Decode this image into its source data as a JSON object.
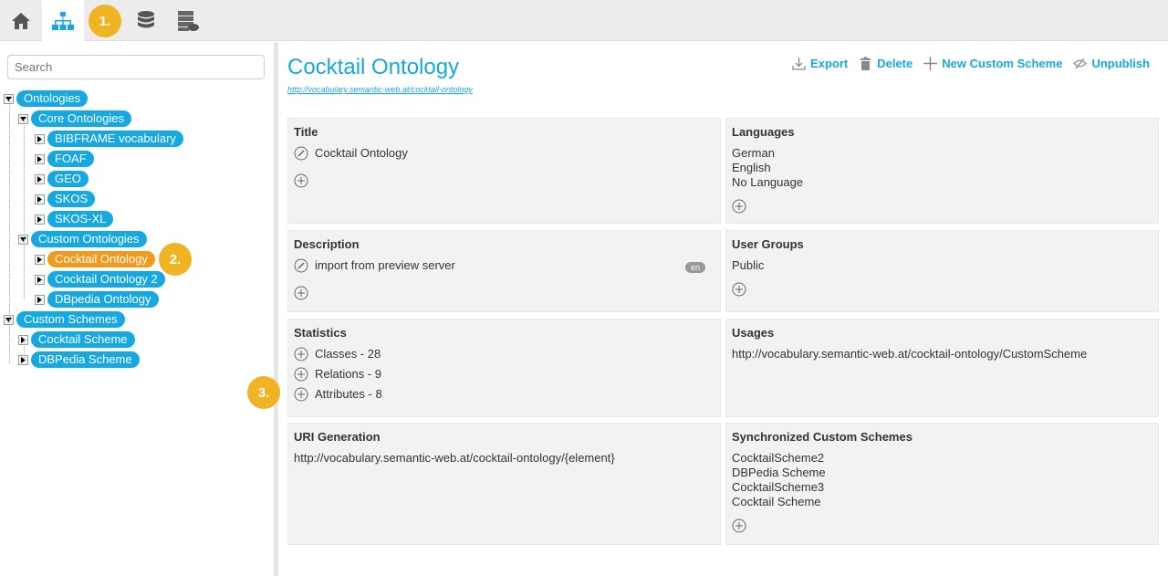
{
  "topbar": {
    "items": [
      {
        "icon": "home-icon"
      },
      {
        "icon": "hierarchy-icon",
        "active": true
      },
      {
        "icon": "database-icon"
      },
      {
        "icon": "server-cloud-icon"
      }
    ],
    "badge1": "1."
  },
  "sidebar": {
    "search_placeholder": "Search",
    "badge2": "2.",
    "tree": [
      {
        "label": "Ontologies",
        "level": 0,
        "open": true
      },
      {
        "label": "Core Ontologies",
        "level": 1,
        "open": true
      },
      {
        "label": "BIBFRAME vocabulary",
        "level": 2
      },
      {
        "label": "FOAF",
        "level": 2
      },
      {
        "label": "GEO",
        "level": 2
      },
      {
        "label": "SKOS",
        "level": 2
      },
      {
        "label": "SKOS-XL",
        "level": 2
      },
      {
        "label": "Custom Ontologies",
        "level": 1,
        "open": true
      },
      {
        "label": "Cocktail Ontology",
        "level": 2,
        "selected": true
      },
      {
        "label": "Cocktail Ontology 2",
        "level": 2
      },
      {
        "label": "DBpedia Ontology",
        "level": 2
      },
      {
        "label": "Custom Schemes",
        "level": 0,
        "open": true
      },
      {
        "label": "Cocktail Scheme",
        "level": 1
      },
      {
        "label": "DBPedia Scheme",
        "level": 1
      }
    ]
  },
  "main": {
    "title": "Cocktail Ontology",
    "uri": "http://vocabulary.semantic-web.at/cocktail-ontology",
    "actions": {
      "export": "Export",
      "delete": "Delete",
      "new_scheme": "New Custom Scheme",
      "unpublish": "Unpublish"
    },
    "badge3": "3.",
    "title_card": {
      "heading": "Title",
      "value": "Cocktail Ontology"
    },
    "languages": {
      "heading": "Languages",
      "items": [
        "German",
        "English",
        "No Language"
      ]
    },
    "description": {
      "heading": "Description",
      "value": "import from preview server",
      "lang": "en"
    },
    "user_groups": {
      "heading": "User Groups",
      "items": [
        "Public"
      ]
    },
    "statistics": {
      "heading": "Statistics",
      "items": [
        "Classes - 28",
        "Relations - 9",
        "Attributes - 8"
      ]
    },
    "usages": {
      "heading": "Usages",
      "items": [
        "http://vocabulary.semantic-web.at/cocktail-ontology/CustomScheme"
      ]
    },
    "uri_generation": {
      "heading": "URI Generation",
      "value": "http://vocabulary.semantic-web.at/cocktail-ontology/{element}"
    },
    "sync": {
      "heading": "Synchronized Custom Schemes",
      "items": [
        "CocktailScheme2",
        "DBPedia Scheme",
        "CocktailScheme3",
        "Cocktail Scheme"
      ]
    }
  },
  "colors": {
    "accent": "#16a8e0",
    "selected": "#f29a1d",
    "badge": "#f0b323"
  }
}
